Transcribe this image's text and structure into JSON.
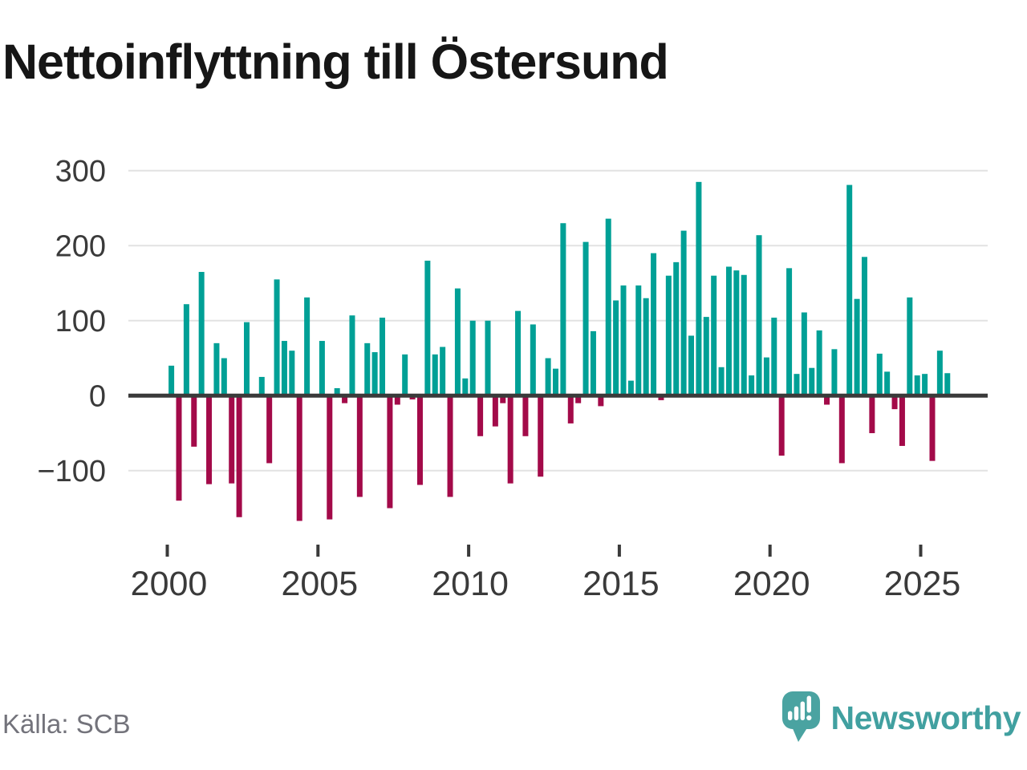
{
  "title": "Nettoinflyttning till Östersund",
  "source": {
    "label": "Källa: SCB"
  },
  "brand": {
    "wordmark": "Newsworthy",
    "icon": "newsworthy-logo-icon",
    "icon_color": "#4aa3a1",
    "wordmark_color": "#41a0a0"
  },
  "colors": {
    "positive": "#00a096",
    "negative": "#a30a49",
    "grid": "#e2e2e2",
    "zero_line": "#3a3a3a",
    "axis_text": "#3a3a3a",
    "title_text": "#161616",
    "source_text": "#73737b",
    "background": "#ffffff"
  },
  "chart_data": {
    "type": "bar",
    "title": "Nettoinflyttning till Östersund",
    "xlabel": "",
    "ylabel": "",
    "frequency": "quarterly",
    "start_quarter": "2000 Q1",
    "end_quarter": "2025 Q4",
    "grid": true,
    "legend_position": "none",
    "ylim": [
      -180,
      320
    ],
    "y_ticks": [
      {
        "label": "300",
        "value": 300
      },
      {
        "label": "200",
        "value": 200
      },
      {
        "label": "100",
        "value": 100
      },
      {
        "label": "0",
        "value": 0
      },
      {
        "label": "−100",
        "value": -100
      }
    ],
    "x_tick_labels": [
      "2000",
      "2005",
      "2010",
      "2015",
      "2020",
      "2025"
    ],
    "values": [
      40,
      -140,
      122,
      -68,
      165,
      -118,
      70,
      50,
      -117,
      -162,
      98,
      0,
      25,
      -90,
      155,
      73,
      60,
      -167,
      131,
      0,
      73,
      -165,
      10,
      -10,
      107,
      -135,
      70,
      58,
      104,
      -150,
      -12,
      55,
      -5,
      -119,
      180,
      55,
      65,
      -135,
      143,
      23,
      100,
      -54,
      100,
      -41,
      -10,
      -117,
      113,
      -54,
      95,
      -108,
      50,
      36,
      230,
      -37,
      -10,
      205,
      86,
      -14,
      236,
      127,
      147,
      20,
      147,
      130,
      190,
      -6,
      160,
      178,
      220,
      80,
      285,
      105,
      160,
      38,
      172,
      167,
      161,
      27,
      214,
      51,
      104,
      -80,
      170,
      29,
      111,
      37,
      87,
      -12,
      62,
      -90,
      281,
      129,
      185,
      -50,
      56,
      32,
      -18,
      -67,
      131,
      27,
      29,
      -87,
      60,
      30
    ]
  }
}
